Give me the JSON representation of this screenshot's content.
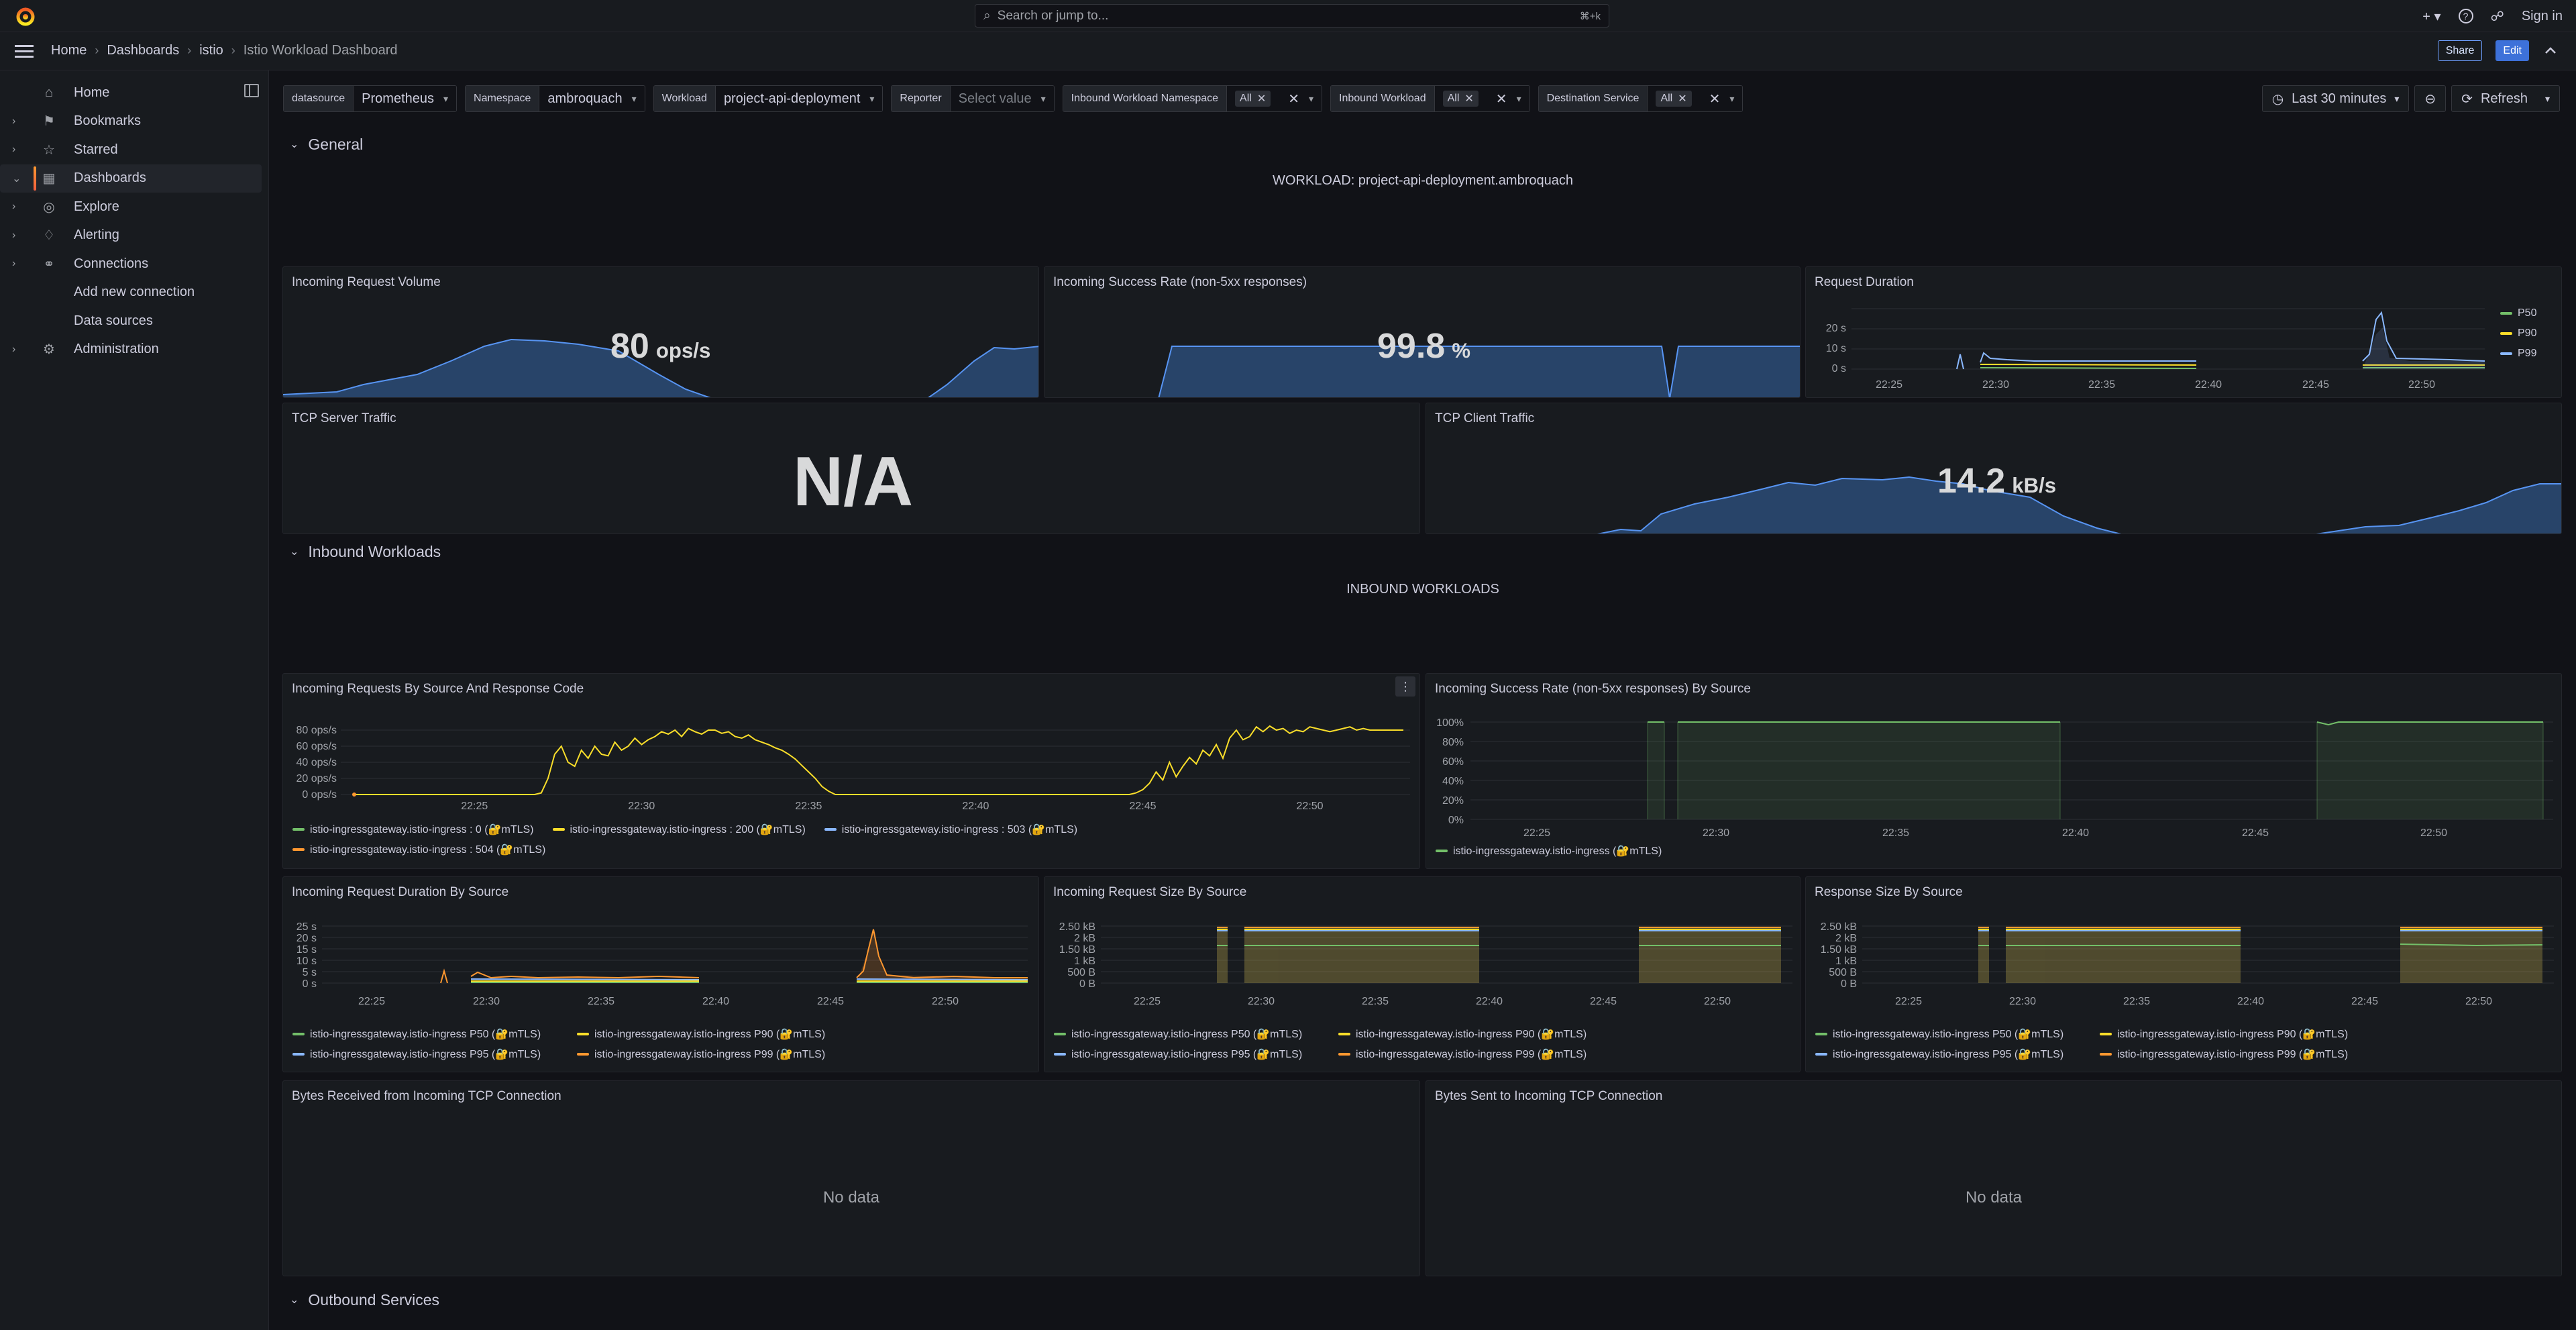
{
  "topbar": {
    "search_placeholder": "Search or jump to...",
    "search_shortcut": "⌘+k",
    "sign_in": "Sign in",
    "plus": "+"
  },
  "breadcrumb": {
    "items": [
      "Home",
      "Dashboards",
      "istio"
    ],
    "current": "Istio Workload Dashboard",
    "share": "Share",
    "edit": "Edit"
  },
  "sidebar": {
    "items": [
      {
        "label": "Home",
        "icon": "home-icon",
        "caret": false
      },
      {
        "label": "Bookmarks",
        "icon": "bookmark-icon",
        "caret": true
      },
      {
        "label": "Starred",
        "icon": "star-icon",
        "caret": true
      },
      {
        "label": "Dashboards",
        "icon": "apps-icon",
        "caret": true,
        "active": true
      },
      {
        "label": "Explore",
        "icon": "compass-icon",
        "caret": true
      },
      {
        "label": "Alerting",
        "icon": "bell-icon",
        "caret": true
      },
      {
        "label": "Connections",
        "icon": "link-icon",
        "caret": true
      },
      {
        "label": "Add new connection",
        "sub": true
      },
      {
        "label": "Data sources",
        "sub": true
      },
      {
        "label": "Administration",
        "icon": "cog-icon",
        "caret": true
      }
    ]
  },
  "variables": {
    "datasource": {
      "label": "datasource",
      "value": "Prometheus"
    },
    "namespace": {
      "label": "Namespace",
      "value": "ambroquach"
    },
    "workload": {
      "label": "Workload",
      "value": "project-api-deployment"
    },
    "reporter": {
      "label": "Reporter",
      "placeholder": "Select value"
    },
    "inbound_ns": {
      "label": "Inbound Workload Namespace",
      "chip": "All"
    },
    "inbound_wl": {
      "label": "Inbound Workload",
      "chip": "All"
    },
    "dest_svc": {
      "label": "Destination Service",
      "chip": "All"
    }
  },
  "time": {
    "range": "Last 30 minutes",
    "refresh": "Refresh"
  },
  "rows": {
    "general": "General",
    "inbound": "Inbound Workloads",
    "outbound": "Outbound Services"
  },
  "text_panels": {
    "workload": "WORKLOAD: project-api-deployment.ambroquach",
    "inbound": "INBOUND WORKLOADS"
  },
  "panels": {
    "incoming_volume": {
      "title": "Incoming Request Volume",
      "value": "80",
      "unit": "ops/s"
    },
    "success_rate": {
      "title": "Incoming Success Rate (non-5xx responses)",
      "value": "99.8",
      "unit": "%"
    },
    "request_duration": {
      "title": "Request Duration",
      "legend": [
        "P50",
        "P90",
        "P99"
      ]
    },
    "tcp_server": {
      "title": "TCP Server Traffic",
      "value": "N/A"
    },
    "tcp_client": {
      "title": "TCP Client Traffic",
      "value": "14.2",
      "unit": "kB/s"
    },
    "req_by_source": {
      "title": "Incoming Requests By Source And Response Code",
      "legend": [
        "istio-ingressgateway.istio-ingress : 0 (🔐mTLS)",
        "istio-ingressgateway.istio-ingress : 200 (🔐mTLS)",
        "istio-ingressgateway.istio-ingress : 503 (🔐mTLS)",
        "istio-ingressgateway.istio-ingress : 504 (🔐mTLS)"
      ]
    },
    "success_by_source": {
      "title": "Incoming Success Rate (non-5xx responses) By Source",
      "legend": [
        "istio-ingressgateway.istio-ingress (🔐mTLS)"
      ]
    },
    "duration_by_source": {
      "title": "Incoming Request Duration By Source",
      "legend": [
        "istio-ingressgateway.istio-ingress P50 (🔐mTLS)",
        "istio-ingressgateway.istio-ingress P90 (🔐mTLS)",
        "istio-ingressgateway.istio-ingress P95 (🔐mTLS)",
        "istio-ingressgateway.istio-ingress P99 (🔐mTLS)"
      ]
    },
    "size_by_source": {
      "title": "Incoming Request Size By Source",
      "legend": [
        "istio-ingressgateway.istio-ingress P50 (🔐mTLS)",
        "istio-ingressgateway.istio-ingress P90 (🔐mTLS)",
        "istio-ingressgateway.istio-ingress P95 (🔐mTLS)",
        "istio-ingressgateway.istio-ingress P99 (🔐mTLS)"
      ]
    },
    "response_size": {
      "title": "Response Size By Source",
      "legend": [
        "istio-ingressgateway.istio-ingress P50 (🔐mTLS)",
        "istio-ingressgateway.istio-ingress P90 (🔐mTLS)",
        "istio-ingressgateway.istio-ingress P95 (🔐mTLS)",
        "istio-ingressgateway.istio-ingress P99 (🔐mTLS)"
      ]
    },
    "bytes_received": {
      "title": "Bytes Received from Incoming TCP Connection",
      "nodata": "No data"
    },
    "bytes_sent": {
      "title": "Bytes Sent to Incoming TCP Connection",
      "nodata": "No data"
    }
  },
  "colors": {
    "green": "#73bf69",
    "yellow": "#fade2a",
    "blue": "#8ab8ff",
    "orange": "#ff9830",
    "red": "#f2495c",
    "accent": "#3d71d9"
  },
  "chart_data": [
    {
      "id": "req_by_source",
      "type": "line",
      "x_ticks": [
        "22:25",
        "22:30",
        "22:35",
        "22:40",
        "22:45",
        "22:50"
      ],
      "y_ticks": [
        "80 ops/s",
        "60 ops/s",
        "40 ops/s",
        "20 ops/s",
        "0 ops/s"
      ],
      "ylim": [
        0,
        80
      ],
      "series": [
        {
          "name": "istio-ingressgateway.istio-ingress : 200 (🔐mTLS)",
          "color": "#fade2a",
          "x": [
            22.22,
            22.27,
            22.3,
            22.35,
            22.38,
            22.42,
            22.45,
            22.5,
            22.55,
            22.6,
            22.65,
            22.7,
            22.75,
            22.8,
            22.85,
            22.9,
            22.95,
            23.0,
            23.05,
            23.1,
            23.15,
            23.2,
            23.25,
            23.3,
            23.35,
            23.4,
            23.45,
            23.5,
            23.55,
            23.6,
            23.65,
            23.7,
            23.75,
            23.8,
            23.85,
            23.9,
            23.95,
            24.0,
            24.05,
            24.1,
            24.15,
            24.2,
            24.25,
            24.3,
            24.35,
            24.4,
            24.45,
            24.5,
            24.55,
            24.6,
            24.65,
            24.7,
            24.75,
            24.8,
            24.85,
            24.9,
            24.95,
            25.0,
            25.05,
            25.1,
            25.15,
            25.2,
            25.25,
            25.3,
            25.35,
            25.4,
            25.45,
            25.5,
            25.55,
            25.6,
            25.65,
            25.7,
            25.75,
            25.8,
            25.85,
            25.9,
            25.95,
            26.0,
            26.05,
            26.1,
            26.15,
            26.2,
            26.25,
            26.3,
            26.35,
            26.4,
            26.45,
            26.5,
            26.55,
            26.6,
            26.65,
            26.7,
            26.75,
            26.8,
            26.85,
            26.9,
            26.95,
            27.0,
            27.05,
            27.1,
            27.15,
            27.2,
            27.25,
            27.3,
            27.35,
            27.4,
            27.45,
            27.5,
            27.55,
            27.6,
            27.65,
            27.7,
            27.75,
            27.8,
            27.85,
            27.9,
            27.95,
            28.0,
            28.05,
            28.1,
            28.15,
            28.2,
            28.25,
            28.3,
            28.35,
            28.4,
            28.45,
            28.5,
            28.55,
            28.6,
            28.65,
            28.7,
            28.75,
            28.8,
            28.85,
            28.9,
            28.95,
            29.0,
            29.05,
            29.1,
            29.15,
            29.2,
            29.25,
            29.3,
            29.35,
            29.4,
            29.45,
            29.5,
            29.55,
            29.6,
            29.65,
            29.7,
            29.75,
            29.8,
            29.85,
            29.9,
            29.95,
            30.0
          ],
          "values": [
            0,
            0,
            0,
            0,
            0,
            0,
            0,
            0,
            0,
            0,
            0,
            0,
            0,
            0,
            0,
            0,
            0,
            0,
            0,
            0,
            0,
            0,
            0,
            0,
            0,
            0,
            0,
            0,
            2,
            20,
            50,
            60,
            40,
            35,
            55,
            45,
            60,
            50,
            48,
            65,
            55,
            60,
            70,
            62,
            68,
            72,
            78,
            75,
            80,
            72,
            82,
            78,
            75,
            80,
            80,
            76,
            78,
            72,
            70,
            74,
            68,
            65,
            62,
            58,
            55,
            50,
            44,
            36,
            28,
            20,
            10,
            4,
            0,
            0,
            0,
            0,
            0,
            0,
            0,
            0,
            0,
            0,
            0,
            0,
            0,
            0,
            0,
            0,
            0,
            0,
            0,
            0,
            0,
            0,
            0,
            0,
            0,
            0,
            0,
            0,
            0,
            0,
            0,
            0,
            0,
            0,
            0,
            0,
            0,
            0,
            0,
            0,
            0,
            0,
            0,
            0,
            0,
            2,
            6,
            14,
            28,
            18,
            40,
            22,
            35,
            46,
            38,
            55,
            48,
            62,
            45,
            70,
            80,
            68,
            72,
            84,
            78,
            85,
            80,
            82,
            76,
            80,
            78,
            84,
            82,
            80,
            78,
            80,
            82,
            84,
            80,
            82,
            80,
            80,
            80,
            80,
            80,
            80
          ]
        }
      ]
    },
    {
      "id": "success_by_source",
      "type": "line",
      "x_ticks": [
        "22:25",
        "22:30",
        "22:35",
        "22:40",
        "22:45",
        "22:50"
      ],
      "y_ticks": [
        "100%",
        "80%",
        "60%",
        "40%",
        "20%",
        "0%"
      ],
      "ylim": [
        0,
        100
      ],
      "series": [
        {
          "name": "istio-ingressgateway.istio-ingress (🔐mTLS)",
          "color": "#73bf69"
        }
      ]
    },
    {
      "id": "request_duration",
      "type": "line",
      "x_ticks": [
        "22:25",
        "22:30",
        "22:35",
        "22:40",
        "22:45",
        "22:50"
      ],
      "y_ticks": [
        "20 s",
        "10 s",
        "0 s"
      ],
      "ylim": [
        0,
        25
      ]
    },
    {
      "id": "duration_by_source",
      "type": "line",
      "x_ticks": [
        "22:25",
        "22:30",
        "22:35",
        "22:40",
        "22:45",
        "22:50"
      ],
      "y_ticks": [
        "25 s",
        "20 s",
        "15 s",
        "10 s",
        "5 s",
        "0 s"
      ],
      "ylim": [
        0,
        25
      ]
    },
    {
      "id": "size_by_source",
      "type": "area",
      "x_ticks": [
        "22:25",
        "22:30",
        "22:35",
        "22:40",
        "22:45",
        "22:50"
      ],
      "y_ticks": [
        "2.50 kB",
        "2 kB",
        "1.50 kB",
        "1 kB",
        "500 B",
        "0 B"
      ],
      "ylim": [
        0,
        2.5
      ]
    },
    {
      "id": "response_size",
      "type": "area",
      "x_ticks": [
        "22:25",
        "22:30",
        "22:35",
        "22:40",
        "22:45",
        "22:50"
      ],
      "y_ticks": [
        "2.50 kB",
        "2 kB",
        "1.50 kB",
        "1 kB",
        "500 B",
        "0 B"
      ],
      "ylim": [
        0,
        2.5
      ]
    }
  ]
}
